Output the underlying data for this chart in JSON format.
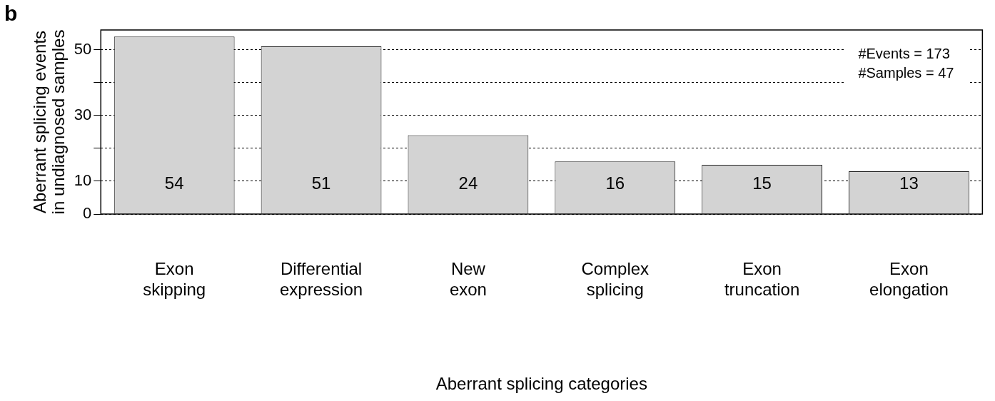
{
  "chart_data": {
    "type": "bar",
    "xlabel": "Aberrant splicing categories",
    "ylabel": "Aberrant splicing events\nin undiagnosed samples",
    "categories": [
      "Exon skipping",
      "Differential expression",
      "New exon",
      "Complex splicing",
      "Exon truncation",
      "Exon elongation"
    ],
    "values": [
      54,
      51,
      24,
      16,
      15,
      13
    ],
    "color": "#d3d3d3",
    "data_labels": true,
    "ylim": [
      0,
      56
    ],
    "yticks": [
      0,
      10,
      {
        "value": 20,
        "label": null
      },
      30,
      {
        "value": 40,
        "label": null
      },
      50
    ],
    "grid": "y",
    "annotations": [
      "b",
      "#Events = 173",
      "#Samples = 47"
    ]
  }
}
